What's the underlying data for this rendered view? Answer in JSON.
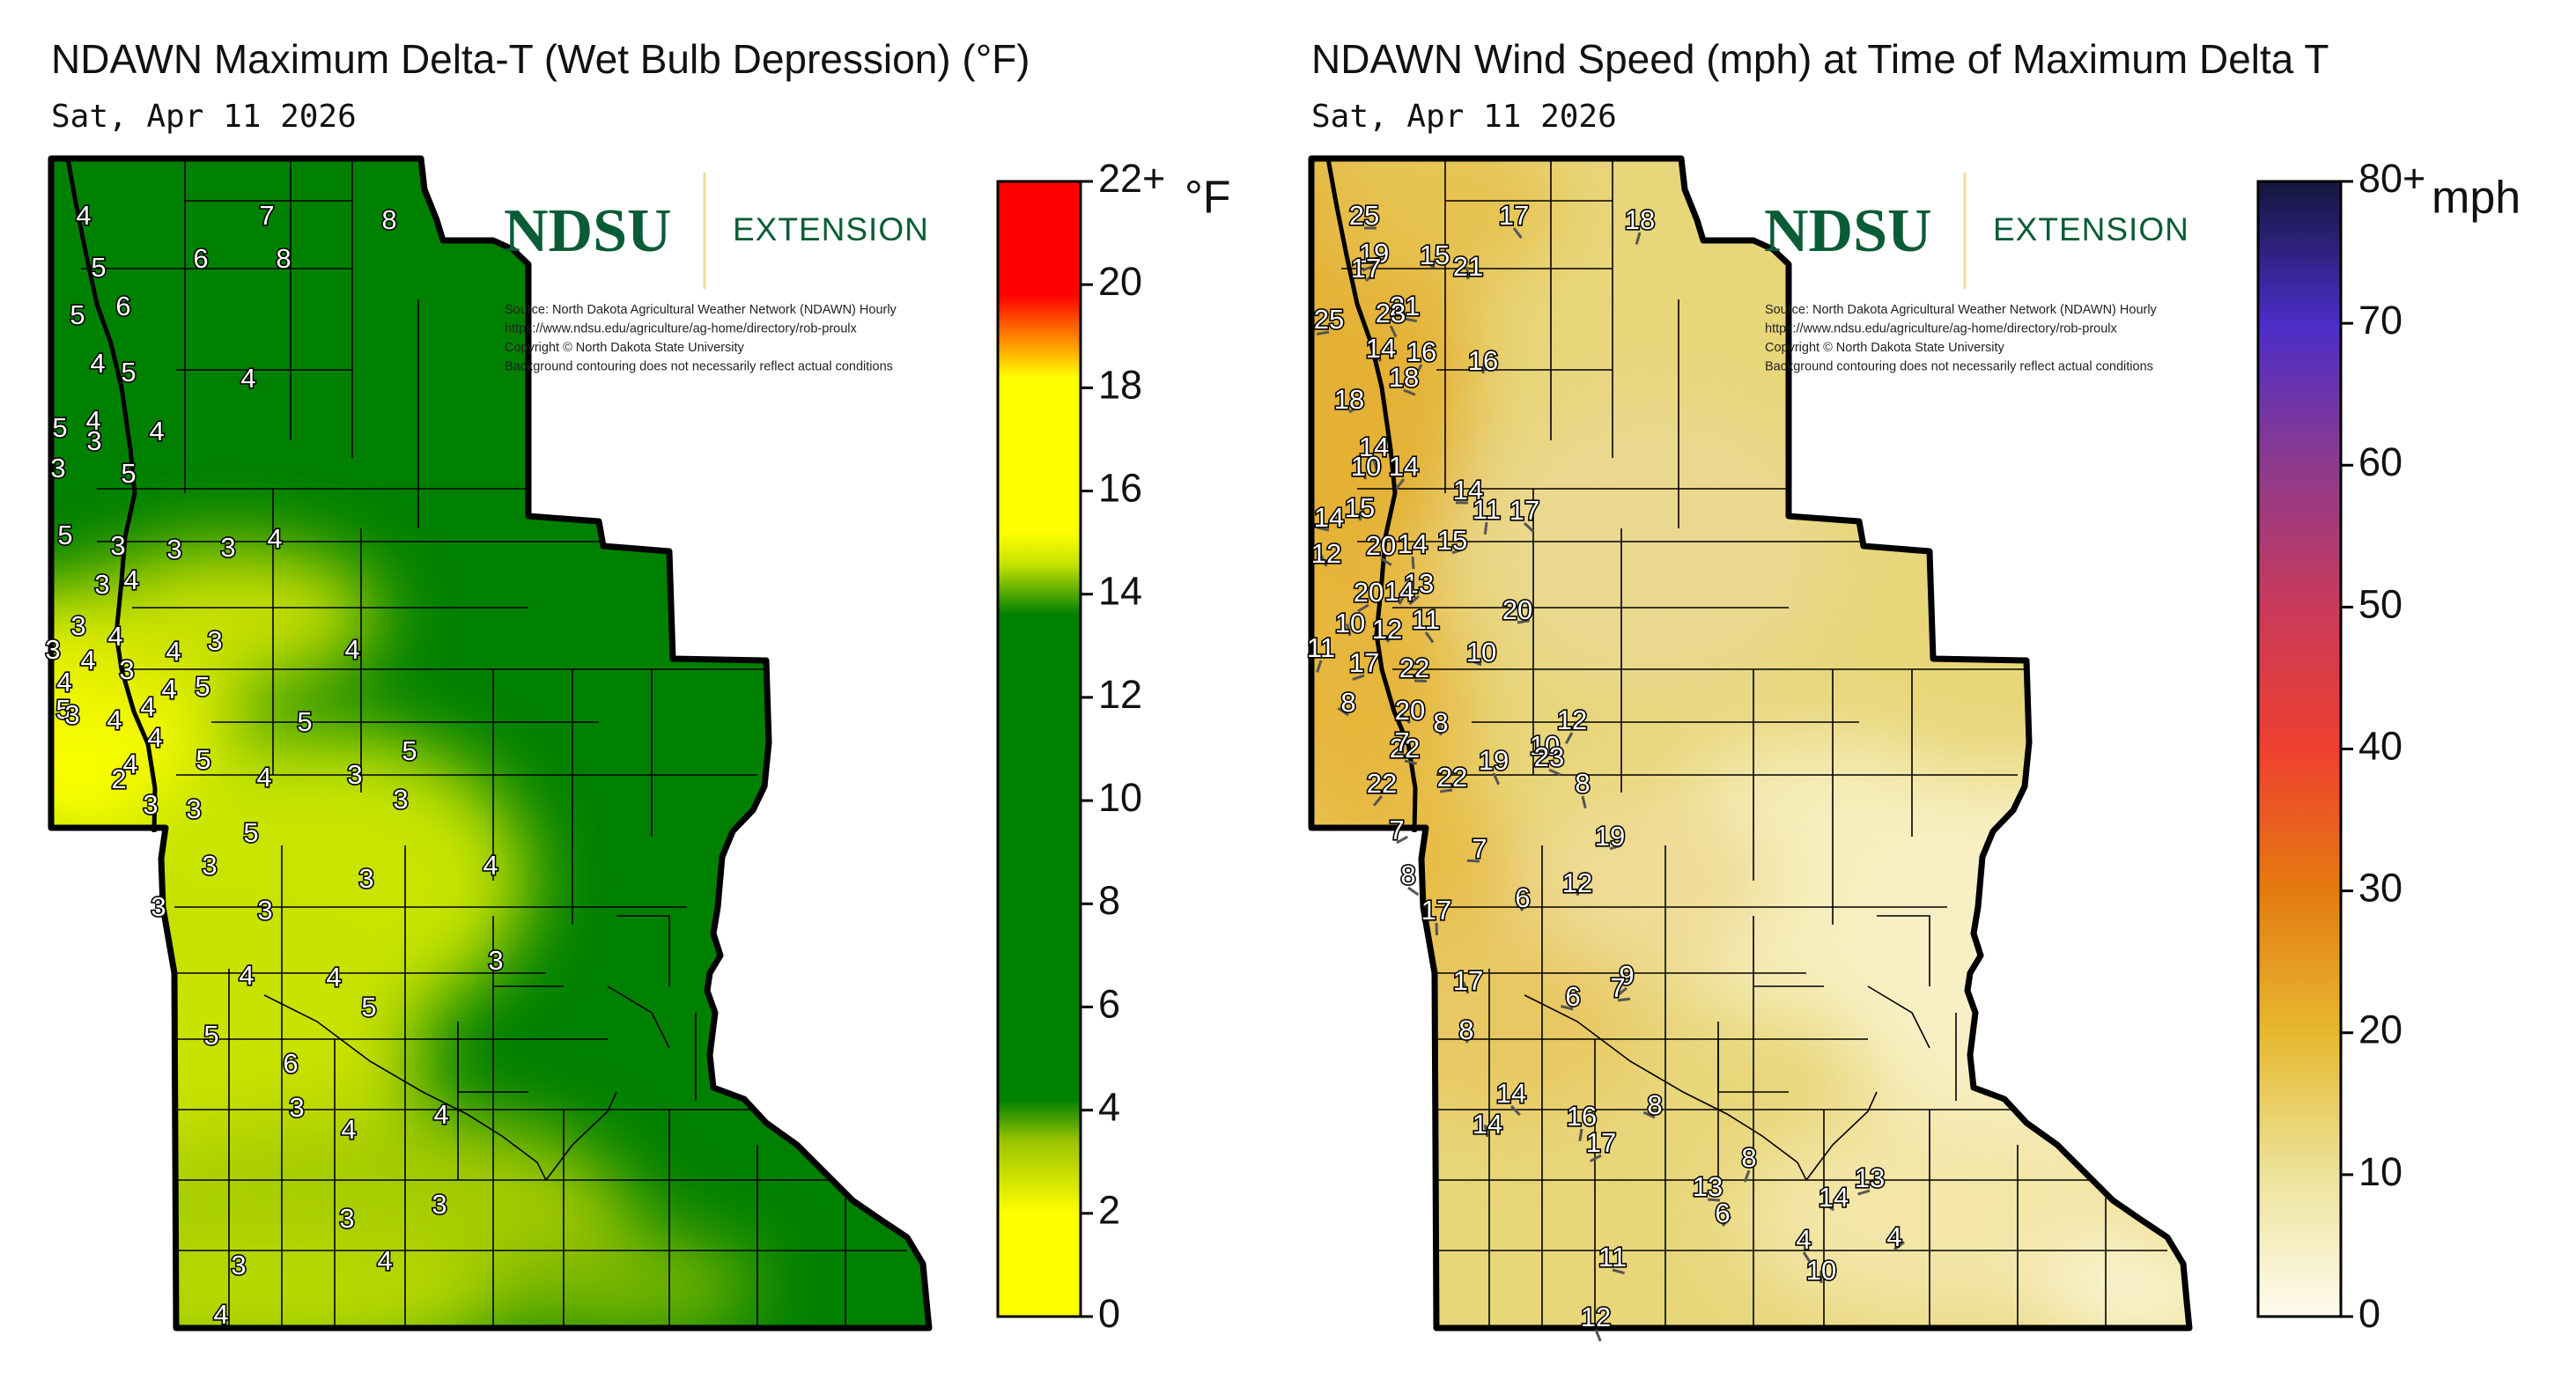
{
  "panels": [
    {
      "id": "delta",
      "title": "NDAWN Maximum Delta-T (Wet Bulb Depression) (°F)",
      "date": "Sat, Apr 11 2026",
      "logo": {
        "name": "NDSU",
        "subtitle": "EXTENSION"
      },
      "source_lines": [
        "Source: North Dakota Agricultural Weather Network (NDAWN) Hourly",
        "https://www.ndsu.edu/agriculture/ag-home/directory/rob-proulx",
        "Copyright © North Dakota State University",
        "Background contouring does not necessarily reflect actual conditions"
      ],
      "colorbar": {
        "unit": "°F",
        "ticks": [
          "0",
          "2",
          "4",
          "6",
          "8",
          "10",
          "12",
          "14",
          "16",
          "18",
          "20",
          "22+"
        ],
        "stops": [
          {
            "v": 0,
            "color": "#ffff00"
          },
          {
            "v": 2,
            "color": "#ffff00"
          },
          {
            "v": 3.4,
            "color": "#9bc400"
          },
          {
            "v": 4.2,
            "color": "#008000"
          },
          {
            "v": 13.6,
            "color": "#008000"
          },
          {
            "v": 14.6,
            "color": "#c8e400"
          },
          {
            "v": 15.2,
            "color": "#ffff00"
          },
          {
            "v": 18.2,
            "color": "#ffff00"
          },
          {
            "v": 19,
            "color": "#ff8000"
          },
          {
            "v": 19.8,
            "color": "#ff0000"
          },
          {
            "v": 22,
            "color": "#ff0000"
          }
        ]
      },
      "values": [
        "4",
        "7",
        "8",
        "5",
        "6",
        "8",
        "5",
        "6",
        "4",
        "5",
        "4",
        "4",
        "5",
        "3",
        "4",
        "3",
        "5",
        "5",
        "3",
        "3",
        "3",
        "4",
        "4",
        "3",
        "3",
        "3",
        "4",
        "4",
        "3",
        "4",
        "3",
        "4",
        "4",
        "4",
        "5",
        "4",
        "5",
        "4",
        "5",
        "3",
        "5",
        "4",
        "4",
        "2",
        "3",
        "3",
        "4",
        "5",
        "3",
        "5",
        "3",
        "3",
        "3",
        "3",
        "3",
        "3",
        "4",
        "4",
        "4",
        "5",
        "4",
        "3",
        "4",
        "6",
        "5",
        "3",
        "3",
        "4",
        "4",
        "3"
      ]
    },
    {
      "id": "wind",
      "title": "NDAWN Wind Speed (mph) at Time of Maximum Delta T",
      "date": "Sat, Apr 11 2026",
      "logo": {
        "name": "NDSU",
        "subtitle": "EXTENSION"
      },
      "source_lines": [
        "Source: North Dakota Agricultural Weather Network (NDAWN) Hourly",
        "https://www.ndsu.edu/agriculture/ag-home/directory/rob-proulx",
        "Copyright © North Dakota State University",
        "Background contouring does not necessarily reflect actual conditions"
      ],
      "colorbar": {
        "unit": "mph",
        "ticks": [
          "0",
          "10",
          "20",
          "30",
          "40",
          "50",
          "60",
          "70",
          "80+"
        ],
        "stops": [
          {
            "v": 0,
            "color": "#fffbee"
          },
          {
            "v": 10,
            "color": "#ede39a"
          },
          {
            "v": 20,
            "color": "#e6b830"
          },
          {
            "v": 30,
            "color": "#e47b10"
          },
          {
            "v": 40,
            "color": "#ee4030"
          },
          {
            "v": 50,
            "color": "#c93a5a"
          },
          {
            "v": 60,
            "color": "#8e3a8e"
          },
          {
            "v": 70,
            "color": "#4b2ec8"
          },
          {
            "v": 80,
            "color": "#14163c"
          }
        ]
      },
      "values": [
        "25",
        "17",
        "18",
        "19",
        "15",
        "21",
        "17",
        "21",
        "23",
        "16",
        "25",
        "14",
        "16",
        "18",
        "18",
        "14",
        "14",
        "14",
        "10",
        "15",
        "15",
        "20",
        "14",
        "13",
        "14",
        "12",
        "14",
        "20",
        "17",
        "11",
        "20",
        "10",
        "10",
        "12",
        "22",
        "11",
        "11",
        "17",
        "8",
        "8",
        "10",
        "22",
        "19",
        "12",
        "22",
        "20",
        "7",
        "7",
        "23",
        "8",
        "22",
        "7",
        "6",
        "12",
        "19",
        "8",
        "17",
        "9",
        "6",
        "17",
        "8",
        "7",
        "14",
        "16",
        "17",
        "8",
        "14",
        "6",
        "13",
        "4",
        "8",
        "13",
        "14",
        "10",
        "4",
        "11",
        "12"
      ]
    }
  ]
}
